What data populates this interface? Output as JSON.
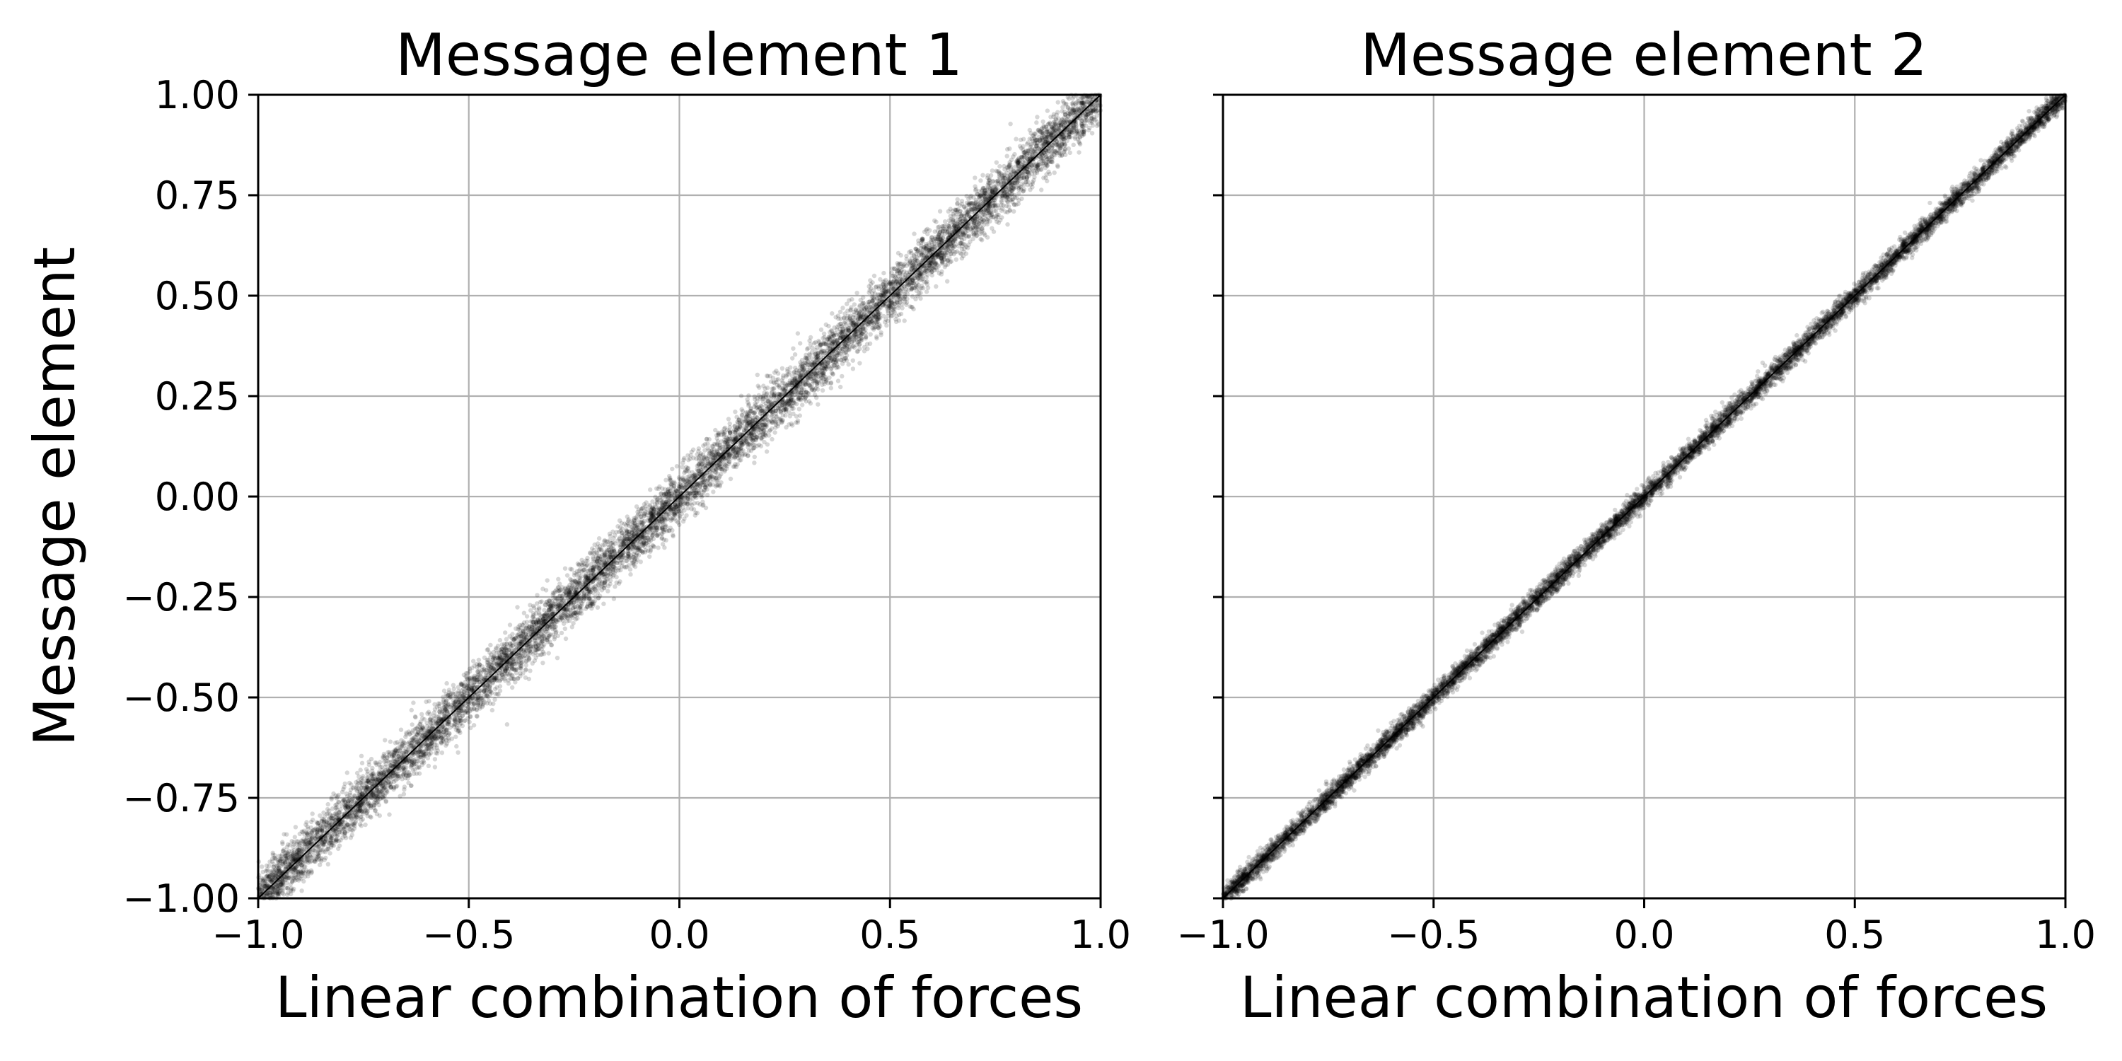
{
  "chart_data": [
    {
      "type": "scatter",
      "title": "Message element 1",
      "xlabel": "Linear combination of forces",
      "ylabel": "Message element",
      "xlim": [
        -1.0,
        1.0
      ],
      "ylim": [
        -1.0,
        1.0
      ],
      "x_ticks": [
        "−1.0",
        "−0.5",
        "0.0",
        "0.5",
        "1.0"
      ],
      "y_ticks": [
        "−1.00",
        "−0.75",
        "−0.50",
        "−0.25",
        "0.00",
        "0.25",
        "0.50",
        "0.75",
        "1.00"
      ],
      "grid": true,
      "reference_line": {
        "x": [
          -1.0,
          1.0
        ],
        "y": [
          -1.0,
          1.0
        ]
      },
      "scatter_band": {
        "center_slope": 1.0,
        "half_width": 0.06
      },
      "marker_color": "#000000"
    },
    {
      "type": "scatter",
      "title": "Message element 2",
      "xlabel": "Linear combination of forces",
      "ylabel": "",
      "xlim": [
        -1.0,
        1.0
      ],
      "ylim": [
        -1.0,
        1.0
      ],
      "x_ticks": [
        "−1.0",
        "−0.5",
        "0.0",
        "0.5",
        "1.0"
      ],
      "y_ticks": [],
      "grid": true,
      "reference_line": {
        "x": [
          -1.0,
          1.0
        ],
        "y": [
          -1.0,
          1.0
        ]
      },
      "scatter_band": {
        "center_slope": 1.0,
        "half_width": 0.025
      },
      "marker_color": "#000000"
    }
  ]
}
